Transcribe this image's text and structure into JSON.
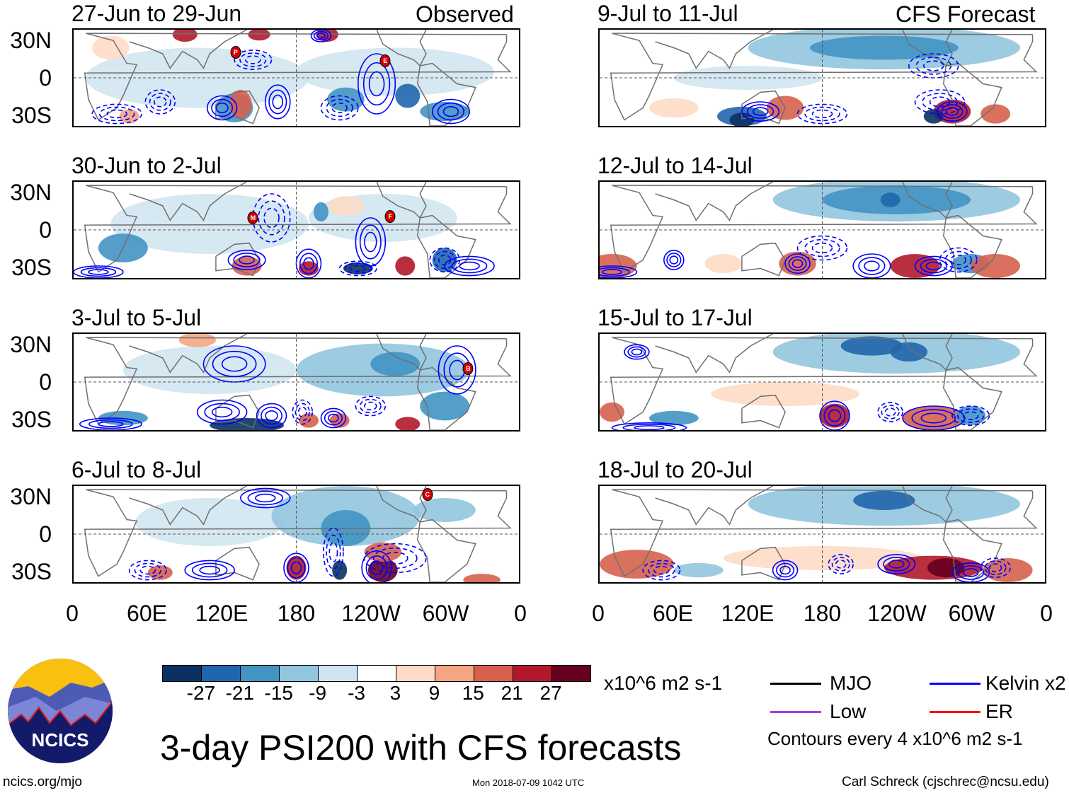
{
  "title": "3-day PSI200 with CFS forecasts",
  "units": "x10^6 m2 s-1",
  "contour_note": "Contours every 4 x10^6 m2 s-1",
  "footer": {
    "site": "ncics.org/mjo",
    "timestamp": "Mon 2018-07-09 1042 UTC",
    "author": "Carl Schreck (cjschrec@ncsu.edu)"
  },
  "logo_text": "NCICS",
  "column_labels": {
    "observed": "Observed",
    "forecast": "CFS Forecast"
  },
  "lat_labels": [
    "30N",
    "0",
    "30S"
  ],
  "lon_labels": [
    "0",
    "60E",
    "120E",
    "180",
    "120W",
    "60W",
    "0"
  ],
  "legend": [
    {
      "label": "MJO",
      "color": "#000000"
    },
    {
      "label": "Kelvin x2",
      "color": "#0000ff"
    },
    {
      "label": "Low",
      "color": "#a040e0"
    },
    {
      "label": "ER",
      "color": "#ff0000"
    }
  ],
  "chart_data": {
    "type": "heatmap",
    "variable": "200-hPa streamfunction anomaly (3-day mean)",
    "colorbar": {
      "levels": [
        -27,
        -21,
        -15,
        -9,
        -3,
        3,
        9,
        15,
        21,
        27
      ],
      "colors": [
        "#0b3162",
        "#2166ac",
        "#4393c3",
        "#92c5de",
        "#d1e5f0",
        "#ffffff",
        "#fddbc7",
        "#f4a582",
        "#d6604d",
        "#b2182b",
        "#67001f"
      ]
    },
    "lon_range": [
      0,
      360
    ],
    "lat_range": [
      -40,
      40
    ],
    "panels": [
      {
        "label": "27-Jun to 29-Jun",
        "type": "observed",
        "storms": [
          {
            "letter": "P",
            "lon": 131,
            "lat": 21
          },
          {
            "letter": "E",
            "lon": 252,
            "lat": 14
          }
        ]
      },
      {
        "label": "30-Jun to 2-Jul",
        "type": "observed",
        "storms": [
          {
            "letter": "M",
            "lon": 145,
            "lat": 10
          },
          {
            "letter": "F",
            "lon": 256,
            "lat": 11
          }
        ]
      },
      {
        "label": "3-Jul to 5-Jul",
        "type": "observed",
        "storms": [
          {
            "letter": "B",
            "lon": 319,
            "lat": 11
          }
        ]
      },
      {
        "label": "6-Jul to 8-Jul",
        "type": "observed",
        "storms": [
          {
            "letter": "C",
            "lon": 286,
            "lat": 33
          }
        ]
      },
      {
        "label": "9-Jul to 11-Jul",
        "type": "forecast",
        "storms": []
      },
      {
        "label": "12-Jul to 14-Jul",
        "type": "forecast",
        "storms": []
      },
      {
        "label": "15-Jul to 17-Jul",
        "type": "forecast",
        "storms": []
      },
      {
        "label": "18-Jul to 20-Jul",
        "type": "forecast",
        "storms": []
      }
    ]
  }
}
